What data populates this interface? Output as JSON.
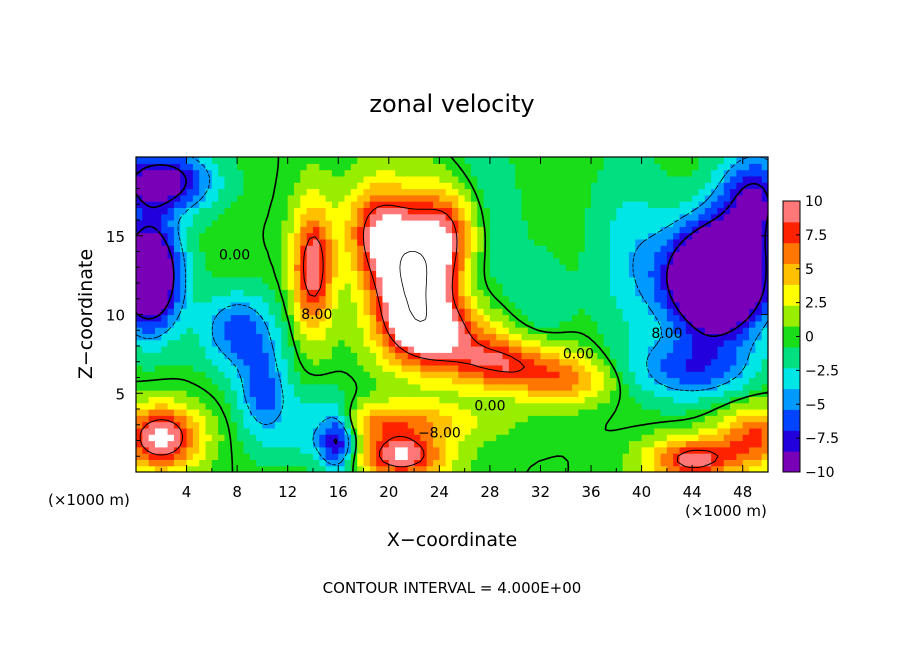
{
  "chart_data": {
    "type": "heatmap",
    "title": "zonal velocity",
    "xlabel": "X−coordinate",
    "ylabel": "Z−coordinate",
    "x_units_left": "(×1000 m)",
    "x_units_right": "(×1000 m)",
    "xlim": [
      0,
      50
    ],
    "ylim": [
      0,
      20
    ],
    "x_ticks": [
      4,
      8,
      12,
      16,
      20,
      24,
      28,
      32,
      36,
      40,
      44,
      48
    ],
    "x_tick_labels": [
      "4",
      "8",
      "12",
      "16",
      "20",
      "24",
      "28",
      "32",
      "36",
      "40",
      "44",
      "48"
    ],
    "y_ticks": [
      5,
      10,
      15
    ],
    "y_tick_labels": [
      "5",
      "10",
      "15"
    ],
    "colorbar": {
      "min": -10,
      "max": 10,
      "tick_values": [
        10,
        7.5,
        5,
        2.5,
        0,
        -2.5,
        -5,
        -7.5,
        -10
      ],
      "tick_labels": [
        "10",
        "7.5",
        "5",
        "2.5",
        "0",
        "−2.5",
        "−5",
        "−7.5",
        "−10"
      ],
      "colors": [
        "#7a00b8",
        "#2200dd",
        "#0044ff",
        "#0099ff",
        "#00e5e5",
        "#00e080",
        "#19dd19",
        "#99ee00",
        "#ffff00",
        "#ffc000",
        "#ff7700",
        "#ff2200",
        "#ff7777"
      ]
    },
    "contour_labels": [
      {
        "text": "0.00",
        "x": 7.8,
        "z": 13.5
      },
      {
        "text": "8.00",
        "x": 14.3,
        "z": 9.7
      },
      {
        "text": "0.00",
        "x": 35.0,
        "z": 7.2
      },
      {
        "text": "8.00",
        "x": 42.0,
        "z": 8.5
      },
      {
        "text": "0.00",
        "x": 28.0,
        "z": 3.9
      },
      {
        "text": "−8.00",
        "x": 24.0,
        "z": 2.2
      }
    ],
    "footer": "CONTOUR INTERVAL = 4.000E+00"
  }
}
